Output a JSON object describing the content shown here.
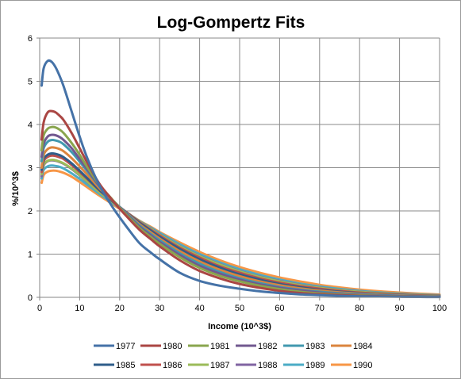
{
  "chart_data": {
    "type": "line",
    "title": "Log-Gompertz Fits",
    "xlabel": "Income (10^3$)",
    "ylabel": "%/10^3$",
    "xlim": [
      0,
      100
    ],
    "ylim": [
      0,
      6
    ],
    "x_ticks": [
      0,
      10,
      20,
      30,
      40,
      50,
      60,
      70,
      80,
      90,
      100
    ],
    "y_ticks": [
      0,
      1,
      2,
      3,
      4,
      5,
      6
    ],
    "grid": true,
    "legend_position": "bottom",
    "x": [
      0.5,
      1,
      2,
      3,
      4,
      5,
      6,
      8,
      10,
      12,
      15,
      18,
      20,
      22,
      25,
      28,
      30,
      35,
      40,
      45,
      50,
      55,
      60,
      65,
      70,
      75,
      80,
      85,
      90,
      95,
      100
    ],
    "series": [
      {
        "name": "1977",
        "color": "#4572a7",
        "values": [
          4.9,
          5.3,
          5.47,
          5.45,
          5.32,
          5.12,
          4.88,
          4.3,
          3.72,
          3.2,
          2.58,
          2.12,
          1.85,
          1.6,
          1.25,
          1.02,
          0.88,
          0.57,
          0.38,
          0.27,
          0.2,
          0.14,
          0.1,
          0.07,
          0.05,
          0.035,
          0.025,
          0.018,
          0.013,
          0.009,
          0.006
        ]
      },
      {
        "name": "1980",
        "color": "#aa4643",
        "values": [
          3.65,
          4.05,
          4.28,
          4.31,
          4.28,
          4.2,
          4.1,
          3.8,
          3.45,
          3.1,
          2.62,
          2.27,
          2.05,
          1.85,
          1.56,
          1.33,
          1.18,
          0.86,
          0.61,
          0.44,
          0.31,
          0.22,
          0.15,
          0.1,
          0.07,
          0.05,
          0.035,
          0.025,
          0.018,
          0.013,
          0.009
        ]
      },
      {
        "name": "1981",
        "color": "#89a54e",
        "values": [
          3.4,
          3.75,
          3.9,
          3.94,
          3.93,
          3.88,
          3.8,
          3.57,
          3.3,
          3.0,
          2.6,
          2.28,
          2.07,
          1.88,
          1.6,
          1.38,
          1.24,
          0.93,
          0.68,
          0.5,
          0.37,
          0.27,
          0.19,
          0.13,
          0.09,
          0.065,
          0.045,
          0.033,
          0.024,
          0.017,
          0.012
        ]
      },
      {
        "name": "1982",
        "color": "#71588f",
        "values": [
          3.25,
          3.55,
          3.72,
          3.76,
          3.75,
          3.71,
          3.64,
          3.45,
          3.2,
          2.95,
          2.57,
          2.27,
          2.08,
          1.9,
          1.63,
          1.42,
          1.28,
          0.98,
          0.73,
          0.55,
          0.41,
          0.3,
          0.22,
          0.16,
          0.11,
          0.08,
          0.058,
          0.042,
          0.03,
          0.022,
          0.016
        ]
      },
      {
        "name": "1983",
        "color": "#4198af",
        "values": [
          3.15,
          3.45,
          3.6,
          3.64,
          3.63,
          3.6,
          3.54,
          3.36,
          3.14,
          2.91,
          2.56,
          2.27,
          2.09,
          1.92,
          1.66,
          1.45,
          1.32,
          1.02,
          0.78,
          0.59,
          0.44,
          0.33,
          0.24,
          0.18,
          0.13,
          0.095,
          0.07,
          0.05,
          0.037,
          0.027,
          0.02
        ]
      },
      {
        "name": "1984",
        "color": "#db843d",
        "values": [
          3.0,
          3.3,
          3.43,
          3.47,
          3.46,
          3.43,
          3.38,
          3.22,
          3.03,
          2.83,
          2.52,
          2.26,
          2.09,
          1.93,
          1.69,
          1.49,
          1.36,
          1.07,
          0.83,
          0.64,
          0.49,
          0.37,
          0.28,
          0.21,
          0.155,
          0.115,
          0.085,
          0.062,
          0.046,
          0.034,
          0.025
        ]
      },
      {
        "name": "1985",
        "color": "#2f5d8a",
        "values": [
          2.95,
          3.2,
          3.3,
          3.33,
          3.32,
          3.29,
          3.24,
          3.1,
          2.93,
          2.75,
          2.48,
          2.24,
          2.09,
          1.94,
          1.72,
          1.53,
          1.4,
          1.12,
          0.88,
          0.69,
          0.53,
          0.41,
          0.31,
          0.235,
          0.175,
          0.13,
          0.097,
          0.072,
          0.053,
          0.039,
          0.029
        ]
      },
      {
        "name": "1986",
        "color": "#c0504d",
        "values": [
          2.9,
          3.15,
          3.25,
          3.28,
          3.27,
          3.24,
          3.2,
          3.06,
          2.9,
          2.73,
          2.47,
          2.24,
          2.09,
          1.95,
          1.74,
          1.55,
          1.43,
          1.15,
          0.92,
          0.72,
          0.57,
          0.44,
          0.34,
          0.26,
          0.2,
          0.15,
          0.11,
          0.083,
          0.062,
          0.046,
          0.034
        ]
      },
      {
        "name": "1987",
        "color": "#9bbb59",
        "values": [
          2.85,
          3.07,
          3.16,
          3.18,
          3.17,
          3.14,
          3.1,
          2.98,
          2.83,
          2.67,
          2.43,
          2.22,
          2.08,
          1.95,
          1.75,
          1.57,
          1.45,
          1.18,
          0.95,
          0.76,
          0.6,
          0.47,
          0.37,
          0.285,
          0.22,
          0.168,
          0.128,
          0.097,
          0.073,
          0.055,
          0.041
        ]
      },
      {
        "name": "1988",
        "color": "#8064a2",
        "values": [
          2.8,
          3.05,
          3.15,
          3.17,
          3.16,
          3.13,
          3.09,
          2.97,
          2.82,
          2.66,
          2.43,
          2.22,
          2.08,
          1.95,
          1.75,
          1.58,
          1.46,
          1.19,
          0.96,
          0.77,
          0.61,
          0.48,
          0.38,
          0.295,
          0.228,
          0.175,
          0.134,
          0.102,
          0.078,
          0.059,
          0.045
        ]
      },
      {
        "name": "1989",
        "color": "#4bacc6",
        "values": [
          2.75,
          2.95,
          3.03,
          3.05,
          3.04,
          3.02,
          2.98,
          2.87,
          2.74,
          2.6,
          2.39,
          2.2,
          2.07,
          1.95,
          1.76,
          1.6,
          1.49,
          1.23,
          1.0,
          0.81,
          0.65,
          0.52,
          0.41,
          0.32,
          0.25,
          0.195,
          0.15,
          0.115,
          0.088,
          0.067,
          0.051
        ]
      },
      {
        "name": "1990",
        "color": "#f79646",
        "values": [
          2.65,
          2.83,
          2.91,
          2.93,
          2.93,
          2.91,
          2.88,
          2.79,
          2.67,
          2.54,
          2.35,
          2.17,
          2.05,
          1.94,
          1.77,
          1.62,
          1.51,
          1.27,
          1.05,
          0.86,
          0.7,
          0.57,
          0.46,
          0.37,
          0.29,
          0.23,
          0.18,
          0.14,
          0.11,
          0.085,
          0.065
        ]
      }
    ]
  }
}
